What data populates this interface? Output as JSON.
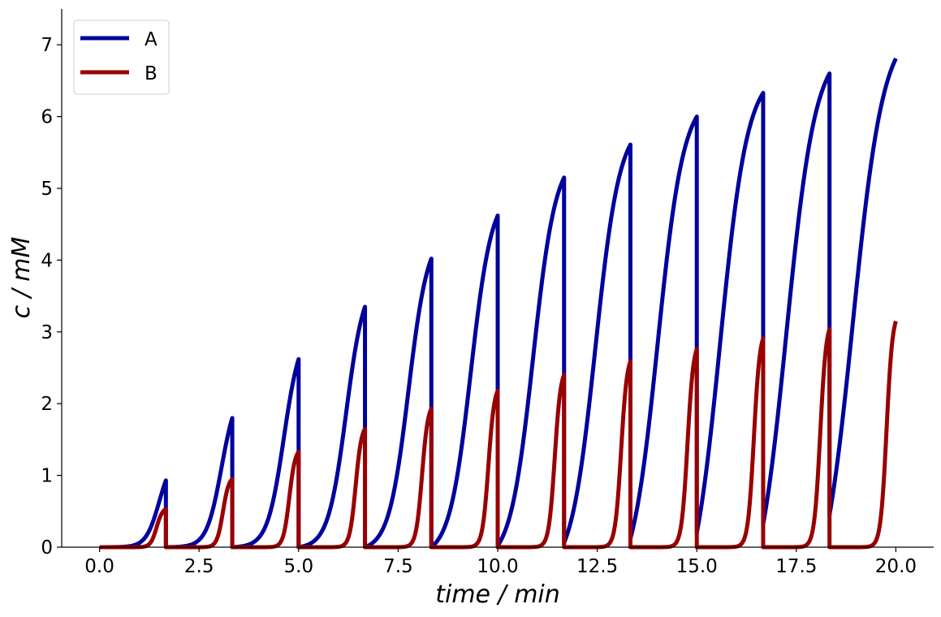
{
  "chart_data": {
    "type": "line",
    "title": "",
    "xlabel": "time / min",
    "ylabel": "c / mM",
    "xlim": [
      -0.95,
      20.95
    ],
    "ylim": [
      0,
      7.5
    ],
    "x_ticks": [
      0.0,
      2.5,
      5.0,
      7.5,
      10.0,
      12.5,
      15.0,
      17.5,
      20.0
    ],
    "x_tick_labels": [
      "0.0",
      "2.5",
      "5.0",
      "7.5",
      "10.0",
      "12.5",
      "15.0",
      "17.5",
      "20.0"
    ],
    "y_ticks": [
      0,
      1,
      2,
      3,
      4,
      5,
      6,
      7
    ],
    "y_tick_labels": [
      "0",
      "1",
      "2",
      "3",
      "4",
      "5",
      "6",
      "7"
    ],
    "grid": false,
    "legend_position": "top-left",
    "period_min": 1.6667,
    "series": [
      {
        "name": "A",
        "color": "#00009c",
        "cycle_peaks": [
          {
            "x": 1.667,
            "y": 0.93
          },
          {
            "x": 3.333,
            "y": 1.8
          },
          {
            "x": 5.0,
            "y": 2.62
          },
          {
            "x": 6.667,
            "y": 3.35
          },
          {
            "x": 8.333,
            "y": 4.02
          },
          {
            "x": 10.0,
            "y": 4.62
          },
          {
            "x": 11.667,
            "y": 5.15
          },
          {
            "x": 13.333,
            "y": 5.61
          },
          {
            "x": 15.0,
            "y": 6.0
          },
          {
            "x": 16.667,
            "y": 6.33
          },
          {
            "x": 18.333,
            "y": 6.6
          },
          {
            "x": 20.0,
            "y": 6.81
          }
        ],
        "cycle_start_values": [
          0,
          0,
          0,
          0,
          0,
          0,
          0.02,
          0.06,
          0.12,
          0.2,
          0.32,
          0.45
        ]
      },
      {
        "name": "B",
        "color": "#990000",
        "cycle_peaks": [
          {
            "x": 1.667,
            "y": 0.53
          },
          {
            "x": 3.333,
            "y": 0.95
          },
          {
            "x": 5.0,
            "y": 1.33
          },
          {
            "x": 6.667,
            "y": 1.65
          },
          {
            "x": 8.333,
            "y": 1.93
          },
          {
            "x": 10.0,
            "y": 2.18
          },
          {
            "x": 11.667,
            "y": 2.4
          },
          {
            "x": 13.333,
            "y": 2.59
          },
          {
            "x": 15.0,
            "y": 2.76
          },
          {
            "x": 16.667,
            "y": 2.91
          },
          {
            "x": 18.333,
            "y": 3.04
          },
          {
            "x": 20.0,
            "y": 3.15
          }
        ]
      }
    ]
  }
}
